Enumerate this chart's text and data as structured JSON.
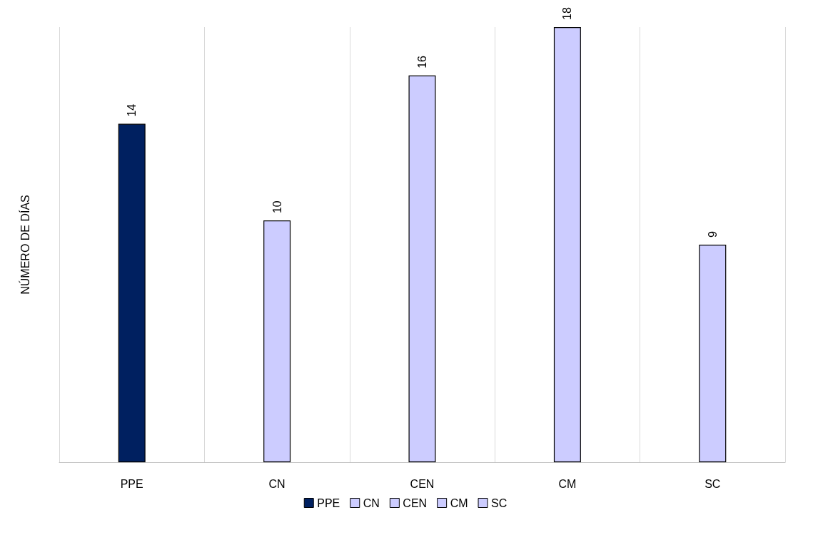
{
  "chart_data": {
    "type": "bar",
    "ylabel": "NÚMERO DE DÍAS",
    "categories": [
      "PPE",
      "CN",
      "CEN",
      "CM",
      "SC"
    ],
    "series": [
      {
        "name": "PPE",
        "color": "#002060",
        "values": [
          14,
          null,
          null,
          null,
          null
        ]
      },
      {
        "name": "CN",
        "color": "#ccccff",
        "values": [
          null,
          10,
          null,
          null,
          null
        ]
      },
      {
        "name": "CEN",
        "color": "#ccccff",
        "values": [
          null,
          null,
          16,
          null,
          null
        ]
      },
      {
        "name": "CM",
        "color": "#ccccff",
        "values": [
          null,
          null,
          null,
          18,
          null
        ]
      },
      {
        "name": "SC",
        "color": "#ccccff",
        "values": [
          null,
          null,
          null,
          null,
          9
        ]
      }
    ],
    "data_labels": true,
    "legend": "bottom",
    "grid": "x"
  }
}
